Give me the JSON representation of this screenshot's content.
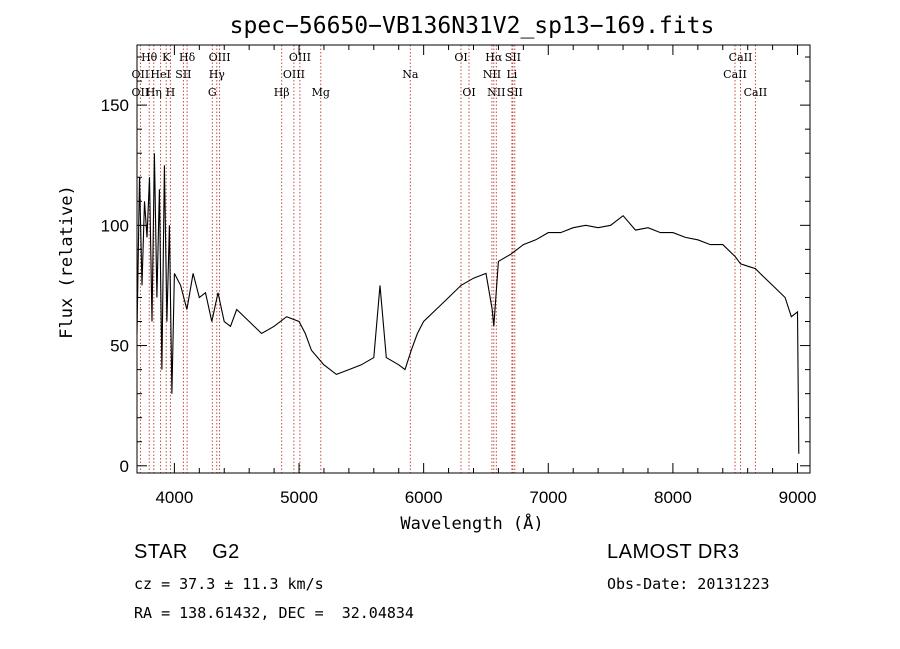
{
  "chart_data": {
    "type": "line",
    "title": "spec−56650−VB136N31V2_sp13−169.fits",
    "xlabel": "Wavelength (Å)",
    "ylabel": "Flux (relative)",
    "xlim": [
      3700,
      9100
    ],
    "ylim": [
      -3,
      175
    ],
    "xticks": [
      4000,
      5000,
      6000,
      7000,
      8000,
      9000
    ],
    "yticks": [
      0,
      50,
      100,
      150
    ],
    "series": [
      {
        "name": "spectrum",
        "x": [
          3700,
          3720,
          3740,
          3760,
          3780,
          3800,
          3820,
          3840,
          3860,
          3880,
          3900,
          3920,
          3940,
          3960,
          3980,
          4000,
          4050,
          4100,
          4150,
          4200,
          4250,
          4300,
          4350,
          4400,
          4450,
          4500,
          4600,
          4700,
          4800,
          4900,
          5000,
          5050,
          5100,
          5200,
          5300,
          5400,
          5500,
          5600,
          5650,
          5700,
          5800,
          5850,
          5900,
          5950,
          6000,
          6100,
          6200,
          6300,
          6400,
          6500,
          6550,
          6563,
          6600,
          6700,
          6800,
          6900,
          7000,
          7100,
          7200,
          7300,
          7400,
          7500,
          7600,
          7700,
          7800,
          7900,
          8000,
          8100,
          8200,
          8300,
          8400,
          8500,
          8542,
          8600,
          8662,
          8700,
          8800,
          8900,
          8950,
          9000,
          9010
        ],
        "y": [
          55,
          120,
          75,
          110,
          95,
          120,
          60,
          130,
          70,
          115,
          40,
          125,
          60,
          100,
          30,
          80,
          75,
          65,
          80,
          70,
          72,
          60,
          72,
          60,
          58,
          65,
          60,
          55,
          58,
          62,
          60,
          55,
          48,
          42,
          38,
          40,
          42,
          45,
          75,
          45,
          42,
          40,
          48,
          55,
          60,
          65,
          70,
          75,
          78,
          80,
          65,
          58,
          85,
          88,
          92,
          94,
          97,
          97,
          99,
          100,
          99,
          100,
          104,
          98,
          99,
          97,
          97,
          95,
          94,
          92,
          92,
          87,
          84,
          83,
          82,
          80,
          75,
          70,
          62,
          64,
          5
        ]
      }
    ],
    "lines": [
      {
        "name": "Hθ",
        "x": 3798,
        "row": 0
      },
      {
        "name": "Hη",
        "x": 3835,
        "row": 2
      },
      {
        "name": "OII",
        "x": 3727,
        "row": 1
      },
      {
        "name": "OII",
        "x": 3727,
        "row": 2
      },
      {
        "name": "HeI",
        "x": 3889,
        "row": 1
      },
      {
        "name": "K",
        "x": 3934,
        "row": 0
      },
      {
        "name": "H",
        "x": 3968,
        "row": 2
      },
      {
        "name": "SII",
        "x": 4072,
        "row": 1
      },
      {
        "name": "Hδ",
        "x": 4102,
        "row": 0
      },
      {
        "name": "OIII",
        "x": 4363,
        "row": 0
      },
      {
        "name": "Hγ",
        "x": 4340,
        "row": 1
      },
      {
        "name": "G",
        "x": 4304,
        "row": 2
      },
      {
        "name": "OIII",
        "x": 5007,
        "row": 0
      },
      {
        "name": "OIII",
        "x": 4959,
        "row": 1
      },
      {
        "name": "Hβ",
        "x": 4861,
        "row": 2
      },
      {
        "name": "Mg",
        "x": 5175,
        "row": 2
      },
      {
        "name": "Na",
        "x": 5893,
        "row": 1
      },
      {
        "name": "OI",
        "x": 6300,
        "row": 0
      },
      {
        "name": "OI",
        "x": 6364,
        "row": 2
      },
      {
        "name": "Hα",
        "x": 6563,
        "row": 0
      },
      {
        "name": "NII",
        "x": 6548,
        "row": 1
      },
      {
        "name": "NII",
        "x": 6583,
        "row": 2
      },
      {
        "name": "SII",
        "x": 6716,
        "row": 0
      },
      {
        "name": "Li",
        "x": 6708,
        "row": 1
      },
      {
        "name": "SII",
        "x": 6731,
        "row": 2
      },
      {
        "name": "CaII",
        "x": 8542,
        "row": 0
      },
      {
        "name": "CaII",
        "x": 8498,
        "row": 1
      },
      {
        "name": "CaII",
        "x": 8662,
        "row": 2
      }
    ]
  },
  "info": {
    "class": "STAR    G2",
    "cz": "cz = 37.3 ± 11.3 km/s",
    "radec": "RA = 138.61432, DEC =  32.04834",
    "survey": "LAMOST DR3",
    "obsdate": "Obs-Date: 20131223"
  }
}
